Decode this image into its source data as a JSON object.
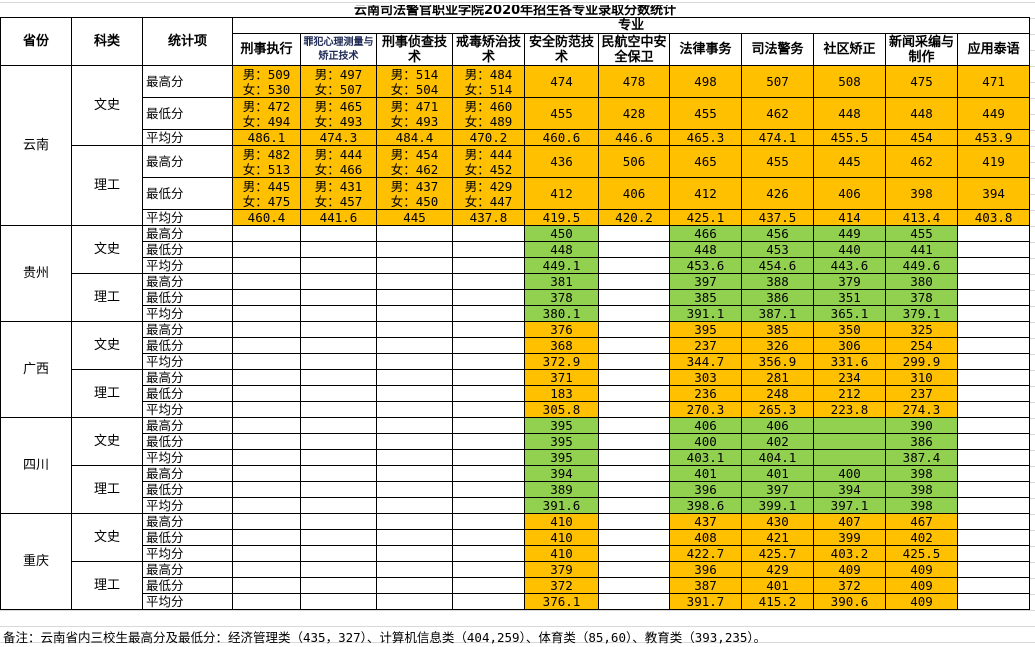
{
  "title": "云南司法警官职业学院2020年招生各专业录取分数统计",
  "headers": {
    "province": "省份",
    "category": "科类",
    "stat": "统计项",
    "major_group": "专业"
  },
  "majors": [
    "刑事执行",
    "罪犯心理测量与矫正技术",
    "刑事侦查技术",
    "戒毒矫治技术",
    "安全防范技术",
    "民航空中安全保卫",
    "法律事务",
    "司法警务",
    "社区矫正",
    "新闻采编与制作",
    "应用泰语"
  ],
  "gender_labels": {
    "male": "男：",
    "female": "女："
  },
  "colors": {
    "orange": "#FFC000",
    "green": "#92D050"
  },
  "provinces": [
    {
      "name": "云南",
      "color": "orange",
      "categories": [
        {
          "name": "文史",
          "rows": [
            {
              "label": "最高分",
              "values": [
                [
                  "509",
                  "530"
                ],
                [
                  "497",
                  "507"
                ],
                [
                  "514",
                  "504"
                ],
                [
                  "484",
                  "514"
                ],
                "474",
                "478",
                "498",
                "507",
                "508",
                "475",
                "471"
              ]
            },
            {
              "label": "最低分",
              "values": [
                [
                  "472",
                  "494"
                ],
                [
                  "465",
                  "493"
                ],
                [
                  "471",
                  "493"
                ],
                [
                  "460",
                  "489"
                ],
                "455",
                "428",
                "455",
                "462",
                "448",
                "448",
                "449"
              ]
            },
            {
              "label": "平均分",
              "values": [
                "486.1",
                "474.3",
                "484.4",
                "470.2",
                "460.6",
                "446.6",
                "465.3",
                "474.1",
                "455.5",
                "454",
                "453.9"
              ]
            }
          ]
        },
        {
          "name": "理工",
          "rows": [
            {
              "label": "最高分",
              "values": [
                [
                  "482",
                  "513"
                ],
                [
                  "444",
                  "466"
                ],
                [
                  "454",
                  "462"
                ],
                [
                  "444",
                  "452"
                ],
                "436",
                "506",
                "465",
                "455",
                "445",
                "462",
                "419"
              ]
            },
            {
              "label": "最低分",
              "values": [
                [
                  "445",
                  "475"
                ],
                [
                  "431",
                  "457"
                ],
                [
                  "437",
                  "450"
                ],
                [
                  "429",
                  "447"
                ],
                "412",
                "406",
                "412",
                "426",
                "406",
                "398",
                "394"
              ]
            },
            {
              "label": "平均分",
              "values": [
                "460.4",
                "441.6",
                "445",
                "437.8",
                "419.5",
                "420.2",
                "425.1",
                "437.5",
                "414",
                "413.4",
                "403.8"
              ]
            }
          ]
        }
      ]
    },
    {
      "name": "贵州",
      "color": "green",
      "categories": [
        {
          "name": "文史",
          "rows": [
            {
              "label": "最高分",
              "values": [
                null,
                null,
                null,
                null,
                "450",
                null,
                "466",
                "456",
                "449",
                "455",
                null
              ]
            },
            {
              "label": "最低分",
              "values": [
                null,
                null,
                null,
                null,
                "448",
                null,
                "448",
                "453",
                "440",
                "441",
                null
              ]
            },
            {
              "label": "平均分",
              "values": [
                null,
                null,
                null,
                null,
                "449.1",
                null,
                "453.6",
                "454.6",
                "443.6",
                "449.6",
                null
              ]
            }
          ]
        },
        {
          "name": "理工",
          "rows": [
            {
              "label": "最高分",
              "values": [
                null,
                null,
                null,
                null,
                "381",
                null,
                "397",
                "388",
                "379",
                "380",
                null
              ]
            },
            {
              "label": "最低分",
              "values": [
                null,
                null,
                null,
                null,
                "378",
                null,
                "385",
                "386",
                "351",
                "378",
                null
              ]
            },
            {
              "label": "平均分",
              "values": [
                null,
                null,
                null,
                null,
                "380.1",
                null,
                "391.1",
                "387.1",
                "365.1",
                "379.1",
                null
              ]
            }
          ]
        }
      ]
    },
    {
      "name": "广西",
      "color": "orange",
      "categories": [
        {
          "name": "文史",
          "rows": [
            {
              "label": "最高分",
              "values": [
                null,
                null,
                null,
                null,
                "376",
                null,
                "395",
                "385",
                "350",
                "325",
                null
              ]
            },
            {
              "label": "最低分",
              "values": [
                null,
                null,
                null,
                null,
                "368",
                null,
                "237",
                "326",
                "306",
                "254",
                null
              ]
            },
            {
              "label": "平均分",
              "values": [
                null,
                null,
                null,
                null,
                "372.9",
                null,
                "344.7",
                "356.9",
                "331.6",
                "299.9",
                null
              ]
            }
          ]
        },
        {
          "name": "理工",
          "rows": [
            {
              "label": "最高分",
              "values": [
                null,
                null,
                null,
                null,
                "371",
                null,
                "303",
                "281",
                "234",
                "310",
                null
              ]
            },
            {
              "label": "最低分",
              "values": [
                null,
                null,
                null,
                null,
                "183",
                null,
                "236",
                "248",
                "212",
                "237",
                null
              ]
            },
            {
              "label": "平均分",
              "values": [
                null,
                null,
                null,
                null,
                "305.8",
                null,
                "270.3",
                "265.3",
                "223.8",
                "274.3",
                null
              ]
            }
          ]
        }
      ]
    },
    {
      "name": "四川",
      "color": "green",
      "categories": [
        {
          "name": "文史",
          "rows": [
            {
              "label": "最高分",
              "values": [
                null,
                null,
                null,
                null,
                "395",
                null,
                "406",
                "406",
                "",
                "390",
                null
              ]
            },
            {
              "label": "最低分",
              "values": [
                null,
                null,
                null,
                null,
                "395",
                null,
                "400",
                "402",
                "",
                "386",
                null
              ]
            },
            {
              "label": "平均分",
              "values": [
                null,
                null,
                null,
                null,
                "395",
                null,
                "403.1",
                "404.1",
                "",
                "387.4",
                null
              ]
            }
          ]
        },
        {
          "name": "理工",
          "rows": [
            {
              "label": "最高分",
              "values": [
                null,
                null,
                null,
                null,
                "394",
                null,
                "401",
                "401",
                "400",
                "398",
                null
              ]
            },
            {
              "label": "最低分",
              "values": [
                null,
                null,
                null,
                null,
                "389",
                null,
                "396",
                "397",
                "394",
                "398",
                null
              ]
            },
            {
              "label": "平均分",
              "values": [
                null,
                null,
                null,
                null,
                "391.6",
                null,
                "398.6",
                "399.1",
                "397.1",
                "398",
                null
              ]
            }
          ]
        }
      ]
    },
    {
      "name": "重庆",
      "color": "orange",
      "categories": [
        {
          "name": "文史",
          "rows": [
            {
              "label": "最高分",
              "values": [
                null,
                null,
                null,
                null,
                "410",
                null,
                "437",
                "430",
                "407",
                "467",
                null
              ]
            },
            {
              "label": "最低分",
              "values": [
                null,
                null,
                null,
                null,
                "410",
                null,
                "408",
                "421",
                "399",
                "402",
                null
              ]
            },
            {
              "label": "平均分",
              "values": [
                null,
                null,
                null,
                null,
                "410",
                null,
                "422.7",
                "425.7",
                "403.2",
                "425.5",
                null
              ]
            }
          ]
        },
        {
          "name": "理工",
          "rows": [
            {
              "label": "最高分",
              "values": [
                null,
                null,
                null,
                null,
                "379",
                null,
                "396",
                "429",
                "409",
                "409",
                null
              ]
            },
            {
              "label": "最低分",
              "values": [
                null,
                null,
                null,
                null,
                "372",
                null,
                "387",
                "401",
                "372",
                "409",
                null
              ]
            },
            {
              "label": "平均分",
              "values": [
                null,
                null,
                null,
                null,
                "376.1",
                null,
                "391.7",
                "415.2",
                "390.6",
                "409",
                null
              ]
            }
          ]
        }
      ]
    }
  ],
  "note": "备注：云南省内三校生最高分及最低分：经济管理类（435，327）、计算机信息类（404,259）、体育类（85,60）、教育类（393,235）。"
}
